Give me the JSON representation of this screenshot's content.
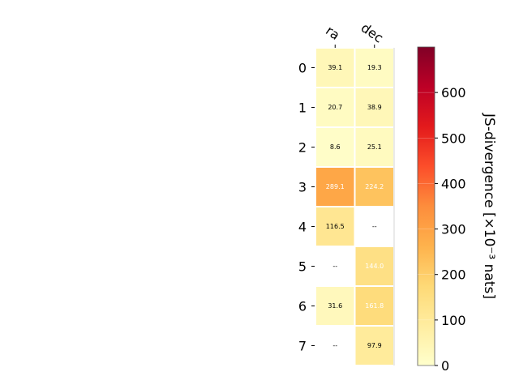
{
  "chart_data": {
    "type": "heatmap",
    "columns": [
      "ra",
      "dec"
    ],
    "rows": [
      "0",
      "1",
      "2",
      "3",
      "4",
      "5",
      "6",
      "7"
    ],
    "values": [
      [
        39.1,
        19.3
      ],
      [
        20.7,
        38.9
      ],
      [
        8.6,
        25.1
      ],
      [
        289.1,
        224.2
      ],
      [
        116.5,
        null
      ],
      [
        null,
        144.0
      ],
      [
        31.6,
        161.8
      ],
      [
        null,
        97.9
      ]
    ],
    "cell_labels": [
      [
        "39.1",
        "19.3"
      ],
      [
        "20.7",
        "38.9"
      ],
      [
        "8.6",
        "25.1"
      ],
      [
        "289.1",
        "224.2"
      ],
      [
        "116.5",
        "--"
      ],
      [
        "--",
        "144.0"
      ],
      [
        "31.6",
        "161.8"
      ],
      [
        "--",
        "97.9"
      ]
    ],
    "colorbar": {
      "label": "JS-divergence [×10⁻³ nats]",
      "range": [
        0,
        700
      ],
      "ticks": [
        0,
        100,
        200,
        300,
        400,
        500,
        600
      ],
      "tick_labels": [
        "0",
        "100",
        "200",
        "300",
        "400",
        "500",
        "600"
      ],
      "colormap": "YlOrRd",
      "colors": [
        "#ffffcc",
        "#ffeda0",
        "#fed976",
        "#feb24c",
        "#fd8d3c",
        "#fc4e2a",
        "#e31a1c",
        "#bd0026",
        "#800026"
      ]
    },
    "grid": false
  }
}
